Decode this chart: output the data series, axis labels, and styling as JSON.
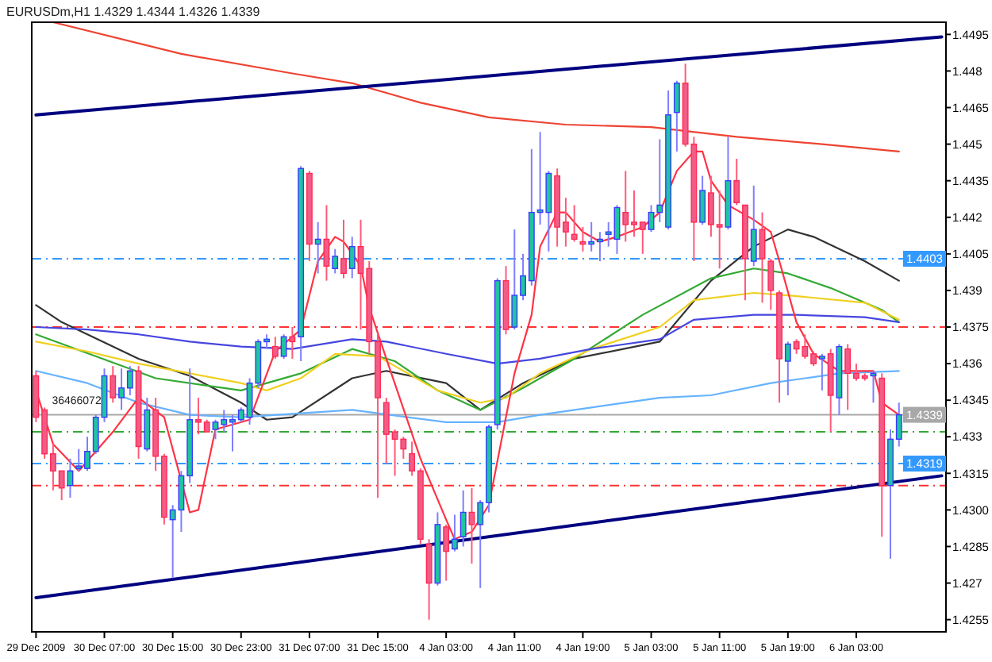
{
  "chart_data": {
    "type": "candlestick",
    "title": "EURUSDm,H1 1.4329 1.4344 1.4326 1.4339",
    "categories": [
      "29 Dec 2009",
      null,
      null,
      null,
      null,
      null,
      null,
      null,
      "30 Dec 07:00",
      null,
      null,
      null,
      null,
      null,
      null,
      null,
      "30 Dec 15:00",
      null,
      null,
      null,
      null,
      null,
      null,
      null,
      "30 Dec 23:00",
      null,
      null,
      null,
      null,
      null,
      null,
      null,
      "31 Dec 07:00",
      null,
      null,
      null,
      null,
      null,
      null,
      null,
      "31 Dec 15:00",
      null,
      null,
      null,
      null,
      null,
      null,
      null,
      "4 Jan 03:00",
      null,
      null,
      null,
      null,
      null,
      null,
      null,
      "4 Jan 11:00",
      null,
      null,
      null,
      null,
      null,
      null,
      null,
      "4 Jan 19:00",
      null,
      null,
      null,
      null,
      null,
      null,
      null,
      "5 Jan 03:00",
      null,
      null,
      null,
      null,
      null,
      null,
      null,
      "5 Jan 11:00",
      null,
      null,
      null,
      null,
      null,
      null,
      null,
      "5 Jan 19:00",
      null,
      null,
      null,
      null,
      null,
      null,
      null,
      "6 Jan 03:00",
      null,
      null,
      null,
      null,
      null,
      null,
      null,
      null,
      null,
      null
    ],
    "ohlc": [
      [
        1.4355,
        1.4357,
        1.4336,
        1.4338
      ],
      [
        1.4341,
        1.4342,
        1.4321,
        1.4323
      ],
      [
        1.4323,
        1.4327,
        1.4308,
        1.4316
      ],
      [
        1.4316,
        1.4316,
        1.4304,
        1.4309
      ],
      [
        1.431,
        1.4321,
        1.4305,
        1.4316
      ],
      [
        1.4317,
        1.4325,
        1.4316,
        1.4318
      ],
      [
        1.4317,
        1.433,
        1.4316,
        1.4324
      ],
      [
        1.4324,
        1.4339,
        1.4323,
        1.4338
      ],
      [
        1.4338,
        1.4358,
        1.4336,
        1.4355
      ],
      [
        1.4355,
        1.4359,
        1.4344,
        1.4346
      ],
      [
        1.4346,
        1.4358,
        1.4341,
        1.435
      ],
      [
        1.435,
        1.4359,
        1.4347,
        1.4357
      ],
      [
        1.4357,
        1.4359,
        1.4321,
        1.4326
      ],
      [
        1.4325,
        1.4346,
        1.4324,
        1.4341
      ],
      [
        1.4341,
        1.4346,
        1.4316,
        1.4322
      ],
      [
        1.4322,
        1.4323,
        1.4294,
        1.4297
      ],
      [
        1.4296,
        1.4302,
        1.4272,
        1.43
      ],
      [
        1.43,
        1.4316,
        1.4291,
        1.4314
      ],
      [
        1.4314,
        1.4358,
        1.4311,
        1.4337
      ],
      [
        1.4337,
        1.4346,
        1.4331,
        1.4336
      ],
      [
        1.4336,
        1.4337,
        1.4332,
        1.4332
      ],
      [
        1.4333,
        1.4337,
        1.4329,
        1.4336
      ],
      [
        1.4335,
        1.4341,
        1.4332,
        1.4337
      ],
      [
        1.4336,
        1.4339,
        1.4324,
        1.4337
      ],
      [
        1.4337,
        1.4342,
        1.4336,
        1.4341
      ],
      [
        1.4338,
        1.4354,
        1.4335,
        1.4352
      ],
      [
        1.4352,
        1.437,
        1.435,
        1.4369
      ],
      [
        1.4369,
        1.4372,
        1.4366,
        1.437
      ],
      [
        1.4367,
        1.4371,
        1.4362,
        1.4363
      ],
      [
        1.4363,
        1.4372,
        1.4362,
        1.4371
      ],
      [
        1.4371,
        1.4375,
        1.4362,
        1.4369
      ],
      [
        1.4371,
        1.4441,
        1.4361,
        1.444
      ],
      [
        1.4438,
        1.4439,
        1.4402,
        1.4409
      ],
      [
        1.4409,
        1.4418,
        1.4397,
        1.4411
      ],
      [
        1.4411,
        1.4425,
        1.4394,
        1.44
      ],
      [
        1.4399,
        1.4407,
        1.4397,
        1.4404
      ],
      [
        1.4403,
        1.4419,
        1.4395,
        1.4397
      ],
      [
        1.4399,
        1.4412,
        1.4395,
        1.4408
      ],
      [
        1.4408,
        1.4419,
        1.4374,
        1.4397
      ],
      [
        1.4399,
        1.4402,
        1.4364,
        1.4369
      ],
      [
        1.4369,
        1.4372,
        1.4305,
        1.4346
      ],
      [
        1.4344,
        1.4346,
        1.4319,
        1.4331
      ],
      [
        1.4332,
        1.4333,
        1.4314,
        1.4329
      ],
      [
        1.4329,
        1.433,
        1.4321,
        1.4325
      ],
      [
        1.4323,
        1.4328,
        1.4314,
        1.4316
      ],
      [
        1.4316,
        1.4317,
        1.4286,
        1.4288
      ],
      [
        1.4286,
        1.4288,
        1.4255,
        1.427
      ],
      [
        1.427,
        1.4299,
        1.4269,
        1.4294
      ],
      [
        1.4293,
        1.4294,
        1.4271,
        1.4283
      ],
      [
        1.4284,
        1.4298,
        1.4283,
        1.4288
      ],
      [
        1.4289,
        1.4308,
        1.4285,
        1.4299
      ],
      [
        1.4299,
        1.4309,
        1.4278,
        1.4294
      ],
      [
        1.4294,
        1.4304,
        1.4268,
        1.4303
      ],
      [
        1.4303,
        1.4335,
        1.4299,
        1.4334
      ],
      [
        1.4335,
        1.4395,
        1.4333,
        1.4394
      ],
      [
        1.4394,
        1.44,
        1.4372,
        1.4374
      ],
      [
        1.4375,
        1.4415,
        1.4374,
        1.4388
      ],
      [
        1.4388,
        1.4405,
        1.4386,
        1.4396
      ],
      [
        1.4394,
        1.4448,
        1.4392,
        1.4422
      ],
      [
        1.4422,
        1.4455,
        1.4417,
        1.4423
      ],
      [
        1.4422,
        1.4439,
        1.4406,
        1.4438
      ],
      [
        1.4437,
        1.444,
        1.4408,
        1.4416
      ],
      [
        1.4418,
        1.4428,
        1.4408,
        1.4414
      ],
      [
        1.4413,
        1.4425,
        1.441,
        1.4411
      ],
      [
        1.441,
        1.4416,
        1.4406,
        1.4409
      ],
      [
        1.4409,
        1.4418,
        1.4406,
        1.441
      ],
      [
        1.441,
        1.4414,
        1.4402,
        1.4411
      ],
      [
        1.4413,
        1.4418,
        1.4408,
        1.4414
      ],
      [
        1.4411,
        1.4425,
        1.4405,
        1.4424
      ],
      [
        1.4422,
        1.4439,
        1.441,
        1.4417
      ],
      [
        1.4418,
        1.4431,
        1.4412,
        1.4417
      ],
      [
        1.4418,
        1.4418,
        1.4405,
        1.4415
      ],
      [
        1.4415,
        1.4425,
        1.4414,
        1.4422
      ],
      [
        1.4422,
        1.4452,
        1.4418,
        1.4425
      ],
      [
        1.4416,
        1.4472,
        1.4415,
        1.4462
      ],
      [
        1.4463,
        1.4476,
        1.4447,
        1.4475
      ],
      [
        1.4475,
        1.4483,
        1.4449,
        1.445
      ],
      [
        1.445,
        1.4453,
        1.4402,
        1.4418
      ],
      [
        1.4418,
        1.4437,
        1.4417,
        1.4431
      ],
      [
        1.443,
        1.4437,
        1.4412,
        1.4417
      ],
      [
        1.4417,
        1.4431,
        1.4399,
        1.4416
      ],
      [
        1.4416,
        1.4453,
        1.4415,
        1.4435
      ],
      [
        1.4435,
        1.4444,
        1.4425,
        1.4426
      ],
      [
        1.4425,
        1.4425,
        1.4386,
        1.4403
      ],
      [
        1.4402,
        1.4433,
        1.44,
        1.4415
      ],
      [
        1.4415,
        1.4422,
        1.4385,
        1.4403
      ],
      [
        1.4402,
        1.4403,
        1.4382,
        1.439
      ],
      [
        1.4389,
        1.439,
        1.4344,
        1.4362
      ],
      [
        1.4361,
        1.4369,
        1.4347,
        1.4368
      ],
      [
        1.4369,
        1.437,
        1.4364,
        1.4366
      ],
      [
        1.4367,
        1.4372,
        1.4362,
        1.4363
      ],
      [
        1.4364,
        1.4365,
        1.4359,
        1.436
      ],
      [
        1.4362,
        1.4364,
        1.4349,
        1.4363
      ],
      [
        1.4364,
        1.4366,
        1.4332,
        1.4347
      ],
      [
        1.4346,
        1.4368,
        1.4339,
        1.4367
      ],
      [
        1.4366,
        1.4368,
        1.4341,
        1.4356
      ],
      [
        1.4356,
        1.436,
        1.4353,
        1.4354
      ],
      [
        1.4355,
        1.4356,
        1.4353,
        1.4354
      ],
      [
        1.4355,
        1.4357,
        1.4344,
        1.4356
      ],
      [
        1.4354,
        1.4356,
        1.4289,
        1.431
      ],
      [
        1.431,
        1.4333,
        1.428,
        1.4329
      ],
      [
        1.4329,
        1.4344,
        1.4326,
        1.4339
      ],
      null,
      null,
      null,
      null,
      null
    ],
    "series": [
      {
        "type": "line",
        "color": "#ee4433",
        "values": [
          null,
          null,
          1.45,
          null,
          null,
          null,
          null,
          null,
          null,
          null,
          null,
          null,
          null,
          null,
          null,
          null,
          null,
          1.4487,
          null,
          null,
          null,
          null,
          null,
          null,
          null,
          null,
          null,
          null,
          null,
          null,
          1.4479,
          null,
          null,
          null,
          null,
          null,
          null,
          1.4475,
          null,
          null,
          null,
          null,
          null,
          null,
          null,
          1.4467,
          null,
          null,
          null,
          null,
          null,
          null,
          null,
          1.4461,
          null,
          null,
          null,
          null,
          null,
          null,
          null,
          null,
          1.4458,
          null,
          null,
          null,
          null,
          null,
          null,
          null,
          null,
          null,
          1.4457,
          null,
          null,
          null,
          null,
          null,
          null,
          null,
          null,
          null,
          1.4453,
          null,
          null,
          null,
          null,
          null,
          null,
          null,
          null,
          null,
          1.445,
          null,
          null,
          null,
          null,
          null,
          null,
          null,
          null,
          1.4447,
          null,
          null,
          null,
          null,
          null
        ]
      },
      {
        "type": "line",
        "color": "#000080",
        "values": [
          1.4462,
          null,
          null,
          null,
          null,
          null,
          null,
          null,
          null,
          null,
          null,
          null,
          null,
          null,
          null,
          null,
          null,
          null,
          null,
          null,
          null,
          null,
          null,
          null,
          null,
          null,
          null,
          null,
          null,
          null,
          null,
          null,
          null,
          null,
          null,
          null,
          null,
          null,
          null,
          null,
          null,
          null,
          null,
          null,
          null,
          null,
          null,
          null,
          null,
          null,
          null,
          null,
          null,
          null,
          null,
          null,
          null,
          null,
          null,
          null,
          null,
          null,
          null,
          null,
          null,
          null,
          null,
          null,
          null,
          null,
          null,
          null,
          null,
          null,
          null,
          null,
          null,
          null,
          null,
          null,
          null,
          null,
          null,
          null,
          null,
          null,
          null,
          null,
          null,
          null,
          null,
          null,
          null,
          null,
          null,
          null,
          null,
          null,
          null,
          null,
          null,
          null,
          null,
          null,
          null,
          null,
          1.4494
        ]
      },
      {
        "type": "line",
        "color": "#000080",
        "values": [
          1.4264,
          null,
          null,
          null,
          null,
          null,
          null,
          null,
          null,
          null,
          null,
          null,
          null,
          null,
          null,
          null,
          null,
          null,
          null,
          null,
          null,
          null,
          null,
          null,
          null,
          null,
          null,
          null,
          null,
          null,
          null,
          null,
          null,
          null,
          null,
          null,
          null,
          null,
          null,
          null,
          null,
          null,
          null,
          null,
          null,
          null,
          null,
          null,
          null,
          null,
          null,
          null,
          null,
          null,
          null,
          null,
          null,
          null,
          null,
          null,
          null,
          null,
          null,
          null,
          null,
          null,
          null,
          null,
          null,
          null,
          null,
          null,
          null,
          null,
          null,
          null,
          null,
          null,
          null,
          null,
          null,
          null,
          null,
          null,
          null,
          null,
          null,
          null,
          null,
          null,
          null,
          null,
          null,
          null,
          null,
          null,
          null,
          null,
          null,
          null,
          null,
          null,
          null,
          null,
          null,
          null,
          1.4314
        ]
      },
      {
        "type": "line",
        "color": "#333333",
        "values": [
          1.4384,
          null,
          null,
          1.4377,
          null,
          null,
          null,
          null,
          null,
          null,
          null,
          null,
          1.4362,
          null,
          null,
          null,
          null,
          null,
          1.4355,
          null,
          null,
          null,
          null,
          null,
          1.4344,
          null,
          null,
          1.4337,
          null,
          null,
          1.4338,
          null,
          null,
          null,
          null,
          null,
          null,
          1.4354,
          null,
          null,
          null,
          1.4357,
          null,
          null,
          null,
          null,
          null,
          null,
          1.4352,
          null,
          null,
          null,
          1.4341,
          null,
          null,
          null,
          null,
          1.4352,
          null,
          null,
          null,
          null,
          null,
          1.4362,
          null,
          null,
          null,
          null,
          null,
          null,
          null,
          null,
          null,
          1.4369,
          null,
          null,
          null,
          null,
          null,
          1.4394,
          null,
          null,
          null,
          null,
          1.4408,
          null,
          null,
          null,
          1.4415,
          null,
          null,
          1.4412,
          null,
          null,
          null,
          null,
          null,
          1.4402,
          null,
          null,
          null,
          1.4394,
          null,
          null,
          null,
          null,
          null
        ]
      },
      {
        "type": "line",
        "color": "#33aa33",
        "values": [
          1.4372,
          null,
          null,
          null,
          null,
          null,
          null,
          null,
          null,
          null,
          null,
          null,
          null,
          null,
          1.4354,
          null,
          null,
          null,
          null,
          null,
          null,
          null,
          null,
          null,
          1.4349,
          null,
          null,
          null,
          null,
          null,
          null,
          1.4356,
          null,
          null,
          null,
          null,
          null,
          1.4366,
          null,
          null,
          null,
          null,
          1.4361,
          null,
          null,
          null,
          null,
          1.4349,
          null,
          null,
          null,
          null,
          1.4341,
          null,
          null,
          null,
          null,
          1.435,
          null,
          null,
          null,
          null,
          null,
          1.4362,
          null,
          null,
          null,
          null,
          null,
          null,
          null,
          1.438,
          null,
          null,
          null,
          null,
          null,
          null,
          null,
          1.4395,
          null,
          null,
          null,
          null,
          1.4399,
          null,
          null,
          null,
          1.4397,
          null,
          null,
          null,
          null,
          1.4391,
          null,
          null,
          null,
          null,
          null,
          1.4382,
          null,
          1.4377,
          null,
          null,
          null,
          null,
          null
        ]
      },
      {
        "type": "line",
        "color": "#f0d020",
        "values": [
          1.4369,
          null,
          null,
          null,
          null,
          null,
          1.4365,
          null,
          null,
          null,
          null,
          null,
          1.436,
          null,
          null,
          null,
          null,
          null,
          1.4356,
          null,
          null,
          null,
          null,
          null,
          1.4352,
          null,
          null,
          1.4349,
          null,
          null,
          null,
          1.4354,
          null,
          null,
          null,
          1.4364,
          null,
          null,
          null,
          null,
          1.4363,
          null,
          null,
          null,
          null,
          null,
          null,
          1.4349,
          null,
          null,
          null,
          null,
          1.4344,
          null,
          null,
          1.4346,
          null,
          null,
          null,
          1.4356,
          null,
          null,
          null,
          null,
          null,
          1.4366,
          null,
          null,
          null,
          null,
          null,
          null,
          null,
          1.4375,
          null,
          null,
          null,
          1.4386,
          null,
          null,
          null,
          null,
          null,
          null,
          1.4389,
          null,
          null,
          null,
          1.4388,
          null,
          null,
          null,
          null,
          null,
          null,
          null,
          null,
          1.4385,
          null,
          null,
          null,
          1.4378,
          null,
          null,
          null,
          null,
          null
        ]
      },
      {
        "type": "line",
        "color": "#4646e0",
        "values": [
          1.4375,
          null,
          null,
          null,
          null,
          null,
          1.4374,
          null,
          null,
          null,
          null,
          null,
          1.4372,
          null,
          null,
          null,
          null,
          null,
          1.4369,
          null,
          null,
          null,
          null,
          null,
          1.4367,
          null,
          null,
          null,
          null,
          null,
          1.4366,
          null,
          null,
          null,
          null,
          null,
          null,
          1.437,
          null,
          null,
          null,
          1.4369,
          null,
          null,
          null,
          null,
          null,
          null,
          1.4364,
          null,
          null,
          null,
          null,
          null,
          1.436,
          null,
          null,
          null,
          null,
          1.4362,
          null,
          null,
          null,
          null,
          null,
          1.4366,
          null,
          null,
          null,
          null,
          null,
          null,
          null,
          1.437,
          null,
          null,
          null,
          1.4378,
          null,
          null,
          null,
          null,
          null,
          null,
          1.438,
          null,
          null,
          null,
          null,
          1.438,
          null,
          null,
          null,
          null,
          null,
          null,
          null,
          1.4379,
          null,
          null,
          null,
          1.4377,
          null,
          null,
          null,
          null,
          null
        ]
      },
      {
        "type": "line",
        "color": "#66b3ff",
        "values": [
          1.4357,
          null,
          null,
          null,
          null,
          null,
          1.4352,
          null,
          null,
          null,
          null,
          null,
          1.4344,
          null,
          null,
          null,
          null,
          null,
          1.4339,
          null,
          null,
          null,
          null,
          null,
          1.4338,
          null,
          null,
          null,
          null,
          null,
          null,
          null,
          null,
          null,
          null,
          null,
          null,
          1.4341,
          null,
          null,
          null,
          null,
          null,
          null,
          null,
          null,
          null,
          null,
          1.4336,
          null,
          null,
          null,
          null,
          null,
          1.4336,
          null,
          null,
          null,
          null,
          1.4339,
          null,
          null,
          null,
          null,
          null,
          1.4342,
          null,
          null,
          null,
          null,
          null,
          null,
          null,
          1.4346,
          null,
          null,
          null,
          null,
          null,
          1.4347,
          null,
          null,
          null,
          null,
          null,
          null,
          1.4352,
          null,
          null,
          null,
          null,
          null,
          null,
          null,
          1.4356,
          null,
          null,
          null,
          null,
          null,
          null,
          1.4357,
          null,
          null,
          null,
          null,
          null
        ]
      },
      {
        "type": "line",
        "color": "#ff3344",
        "values": [
          1.4349,
          null,
          1.4327,
          null,
          null,
          1.4316,
          null,
          null,
          null,
          1.4332,
          null,
          null,
          1.4346,
          null,
          null,
          1.4338,
          null,
          null,
          1.4299,
          1.43,
          null,
          1.4333,
          null,
          null,
          null,
          1.4337,
          null,
          null,
          1.4365,
          null,
          null,
          1.4374,
          null,
          1.4402,
          null,
          1.4412,
          1.441,
          null,
          1.44,
          1.4383,
          null,
          1.4362,
          null,
          null,
          null,
          1.4321,
          null,
          null,
          1.4296,
          1.4288,
          null,
          1.4291,
          null,
          1.4302,
          null,
          null,
          1.4356,
          null,
          1.438,
          1.4408,
          null,
          1.4422,
          1.4422,
          null,
          1.4414,
          null,
          1.441,
          null,
          1.4412,
          null,
          null,
          1.4416,
          null,
          1.4422,
          null,
          1.4439,
          null,
          1.4447,
          1.4447,
          1.4435,
          null,
          1.4425,
          null,
          null,
          1.4419,
          null,
          1.4414,
          1.4402,
          null,
          1.4377,
          null,
          1.4364,
          null,
          null,
          1.4357,
          null,
          null,
          null,
          1.4357,
          1.4344,
          null,
          1.4339,
          null,
          null,
          null,
          null,
          null
        ]
      }
    ],
    "ylim": [
      1.425,
      1.45
    ],
    "yticks": [
      1.4495,
      1.448,
      1.4465,
      1.445,
      1.4435,
      1.442,
      1.4405,
      1.439,
      1.4375,
      1.436,
      1.4345,
      1.433,
      1.4315,
      {
        "value": 1.43,
        "label": "1.4300"
      },
      1.4285,
      1.427,
      1.4255
    ],
    "ref_lines": [
      {
        "axis": "y",
        "value": 1.4403,
        "label": "1.4403",
        "color": "#3399ff",
        "line_style": "dashed"
      },
      {
        "axis": "y",
        "value": 1.4375,
        "color": "#ff3333",
        "line_style": "dashed"
      },
      {
        "axis": "y",
        "value": 1.4339,
        "label": "1.4339",
        "color": "#a8a8a8",
        "line_style": "solid"
      },
      {
        "axis": "y",
        "value": 1.4332,
        "color": "#33aa33",
        "line_style": "dashed"
      },
      {
        "axis": "y",
        "value": 1.4319,
        "label": "1.4319",
        "color": "#3399ff",
        "line_style": "dashed"
      },
      {
        "axis": "y",
        "value": 1.431,
        "color": "#ff3333",
        "line_style": "dashed"
      }
    ],
    "annotations": [
      "36466072"
    ]
  }
}
